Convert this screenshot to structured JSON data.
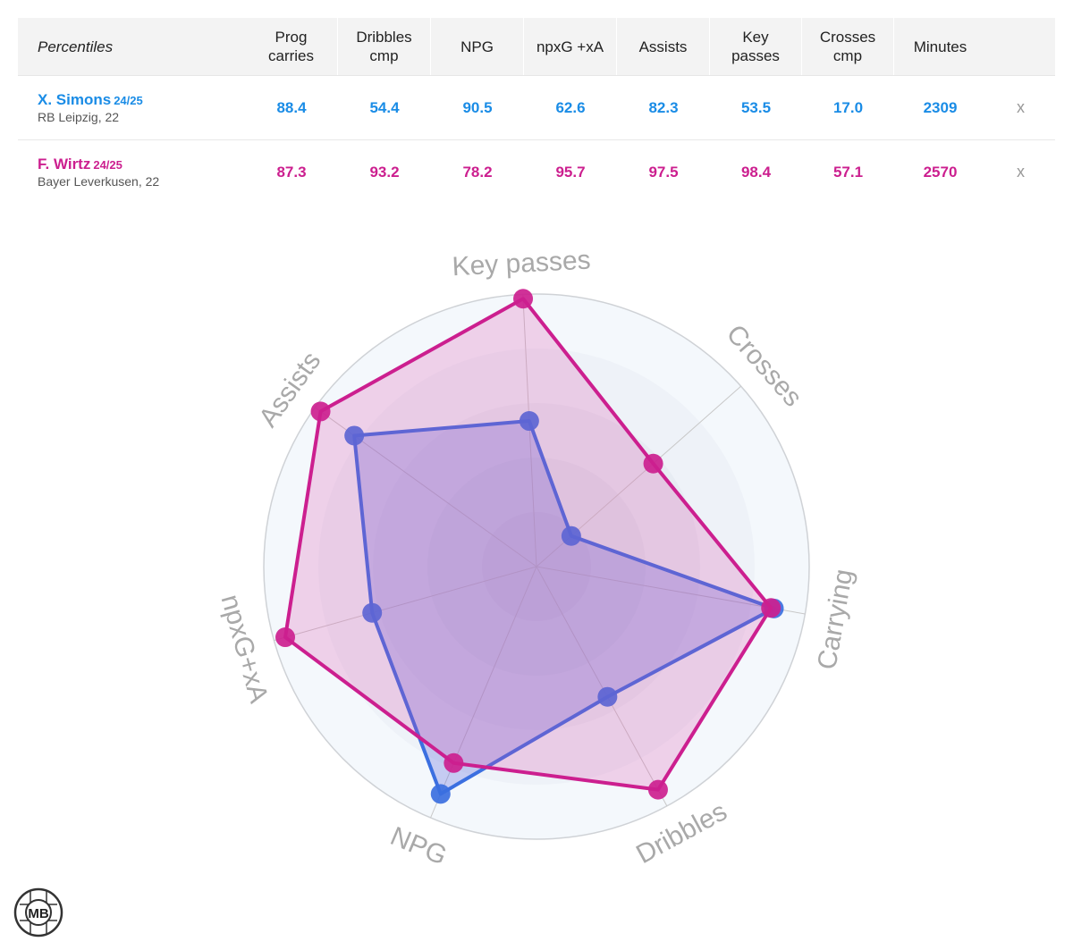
{
  "table": {
    "header": {
      "title": "Percentiles",
      "columns": [
        "Prog\ncarries",
        "Dribbles\ncmp",
        "NPG",
        "npxG +xA",
        "Assists",
        "Key\npasses",
        "Crosses\ncmp",
        "Minutes"
      ]
    },
    "players": [
      {
        "name": "X. Simons",
        "season": "24/25",
        "club": "RB Leipzig, 22",
        "color": "#1a8ce6",
        "values": [
          "88.4",
          "54.4",
          "90.5",
          "62.6",
          "82.3",
          "53.5",
          "17.0",
          "2309"
        ],
        "remove": "x"
      },
      {
        "name": "F. Wirtz",
        "season": "24/25",
        "club": "Bayer Leverkusen, 22",
        "color": "#cc1f8f",
        "values": [
          "87.3",
          "93.2",
          "78.2",
          "95.7",
          "97.5",
          "98.4",
          "57.1",
          "2570"
        ],
        "remove": "x"
      }
    ]
  },
  "chart_data": {
    "type": "radar",
    "axes": [
      "Carrying",
      "Dribbles",
      "NPG",
      "npxG+xA",
      "Assists",
      "Key passes",
      "Crosses"
    ],
    "range": [
      0,
      100
    ],
    "series": [
      {
        "name": "X. Simons",
        "color": "#3b6fe0",
        "values": [
          88.4,
          54.4,
          90.5,
          62.6,
          82.3,
          53.5,
          17.0
        ]
      },
      {
        "name": "F. Wirtz",
        "color": "#cc1f8f",
        "values": [
          87.3,
          93.2,
          78.2,
          95.7,
          97.5,
          98.4,
          57.1
        ]
      }
    ]
  },
  "logo": {
    "text": "MB"
  }
}
